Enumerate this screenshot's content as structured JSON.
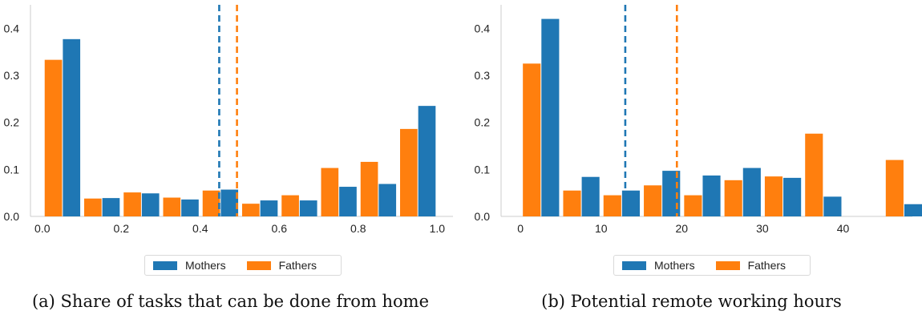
{
  "colors": {
    "mothers": "#1f77b4",
    "fathers": "#ff7f0e"
  },
  "chart_data": [
    {
      "type": "bar",
      "caption": "(a) Share of tasks that can be done from home",
      "x_ticks": [
        "0.0",
        "0.2",
        "0.4",
        "0.6",
        "0.8",
        "1.0"
      ],
      "x_tick_values": [
        0.0,
        0.2,
        0.4,
        0.6,
        0.8,
        1.0
      ],
      "xlim": [
        -0.03,
        1.04
      ],
      "y_ticks": [
        "0.0",
        "0.1",
        "0.2",
        "0.3",
        "0.4"
      ],
      "y_tick_values": [
        0.0,
        0.1,
        0.2,
        0.3,
        0.4
      ],
      "ylim": [
        0,
        0.45
      ],
      "bin_edges": [
        0.0,
        0.1,
        0.2,
        0.3,
        0.4,
        0.5,
        0.6,
        0.7,
        0.8,
        0.9,
        1.0
      ],
      "series": [
        {
          "name": "Fathers",
          "values": [
            0.333,
            0.038,
            0.051,
            0.04,
            0.055,
            0.027,
            0.045,
            0.103,
            0.116,
            0.186
          ]
        },
        {
          "name": "Mothers",
          "values": [
            0.377,
            0.039,
            0.049,
            0.036,
            0.057,
            0.034,
            0.034,
            0.063,
            0.069,
            0.235
          ]
        }
      ],
      "mean_lines": [
        {
          "series": "Mothers",
          "x": 0.448
        },
        {
          "series": "Fathers",
          "x": 0.493
        }
      ],
      "legend": [
        "Mothers",
        "Fathers"
      ],
      "legend_position": "bottom-center",
      "grid": false
    },
    {
      "type": "bar",
      "caption": "(b) Potential remote working hours",
      "x_ticks": [
        "0",
        "10",
        "20",
        "30",
        "40"
      ],
      "x_tick_values": [
        0,
        10,
        20,
        30,
        40
      ],
      "xlim": [
        -2.4,
        48.6
      ],
      "y_ticks": [
        "0.0",
        "0.1",
        "0.2",
        "0.3",
        "0.4"
      ],
      "y_tick_values": [
        0.0,
        0.1,
        0.2,
        0.3,
        0.4
      ],
      "ylim": [
        0,
        0.45
      ],
      "bin_edges": [
        0,
        5,
        10,
        15,
        20,
        25,
        30,
        35,
        40,
        45,
        50
      ],
      "series": [
        {
          "name": "Fathers",
          "values": [
            0.325,
            0.055,
            0.045,
            0.066,
            0.045,
            0.077,
            0.085,
            0.176,
            0.0,
            0.12
          ]
        },
        {
          "name": "Mothers",
          "values": [
            0.42,
            0.084,
            0.055,
            0.097,
            0.087,
            0.103,
            0.082,
            0.042,
            0.0,
            0.026
          ]
        }
      ],
      "mean_lines": [
        {
          "series": "Mothers",
          "x": 13.0
        },
        {
          "series": "Fathers",
          "x": 19.4
        }
      ],
      "legend": [
        "Mothers",
        "Fathers"
      ],
      "legend_position": "bottom-center",
      "grid": false
    }
  ]
}
